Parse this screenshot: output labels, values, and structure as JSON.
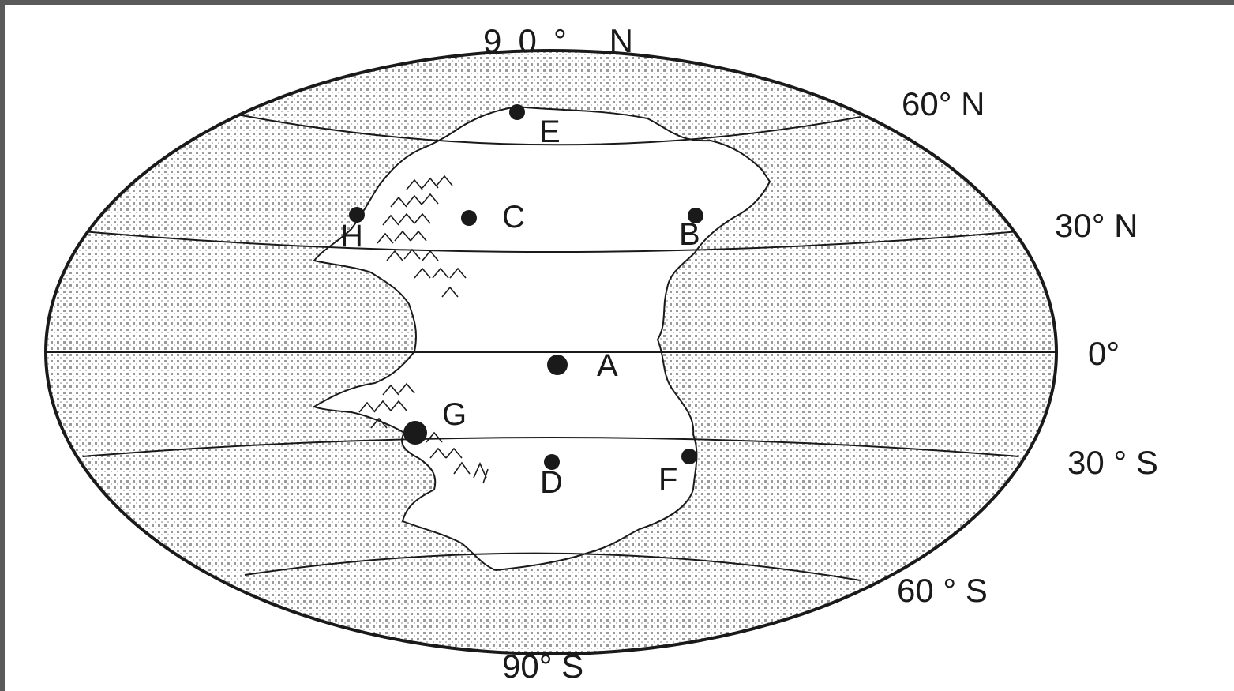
{
  "map": {
    "latitude_labels": {
      "north_pole": "90° N",
      "lat_60n": "60° N",
      "lat_30n": "30° N",
      "equator": "0°",
      "lat_30s": "30 ° S",
      "lat_60s": "60 ° S",
      "south_pole": "90° S"
    },
    "points": {
      "A": "A",
      "B": "B",
      "C": "C",
      "D": "D",
      "E": "E",
      "F": "F",
      "G": "G",
      "H": "H"
    },
    "colors": {
      "ink": "#1a1a1a",
      "ocean_dot": "#9a9a9a",
      "land": "#ffffff"
    }
  }
}
